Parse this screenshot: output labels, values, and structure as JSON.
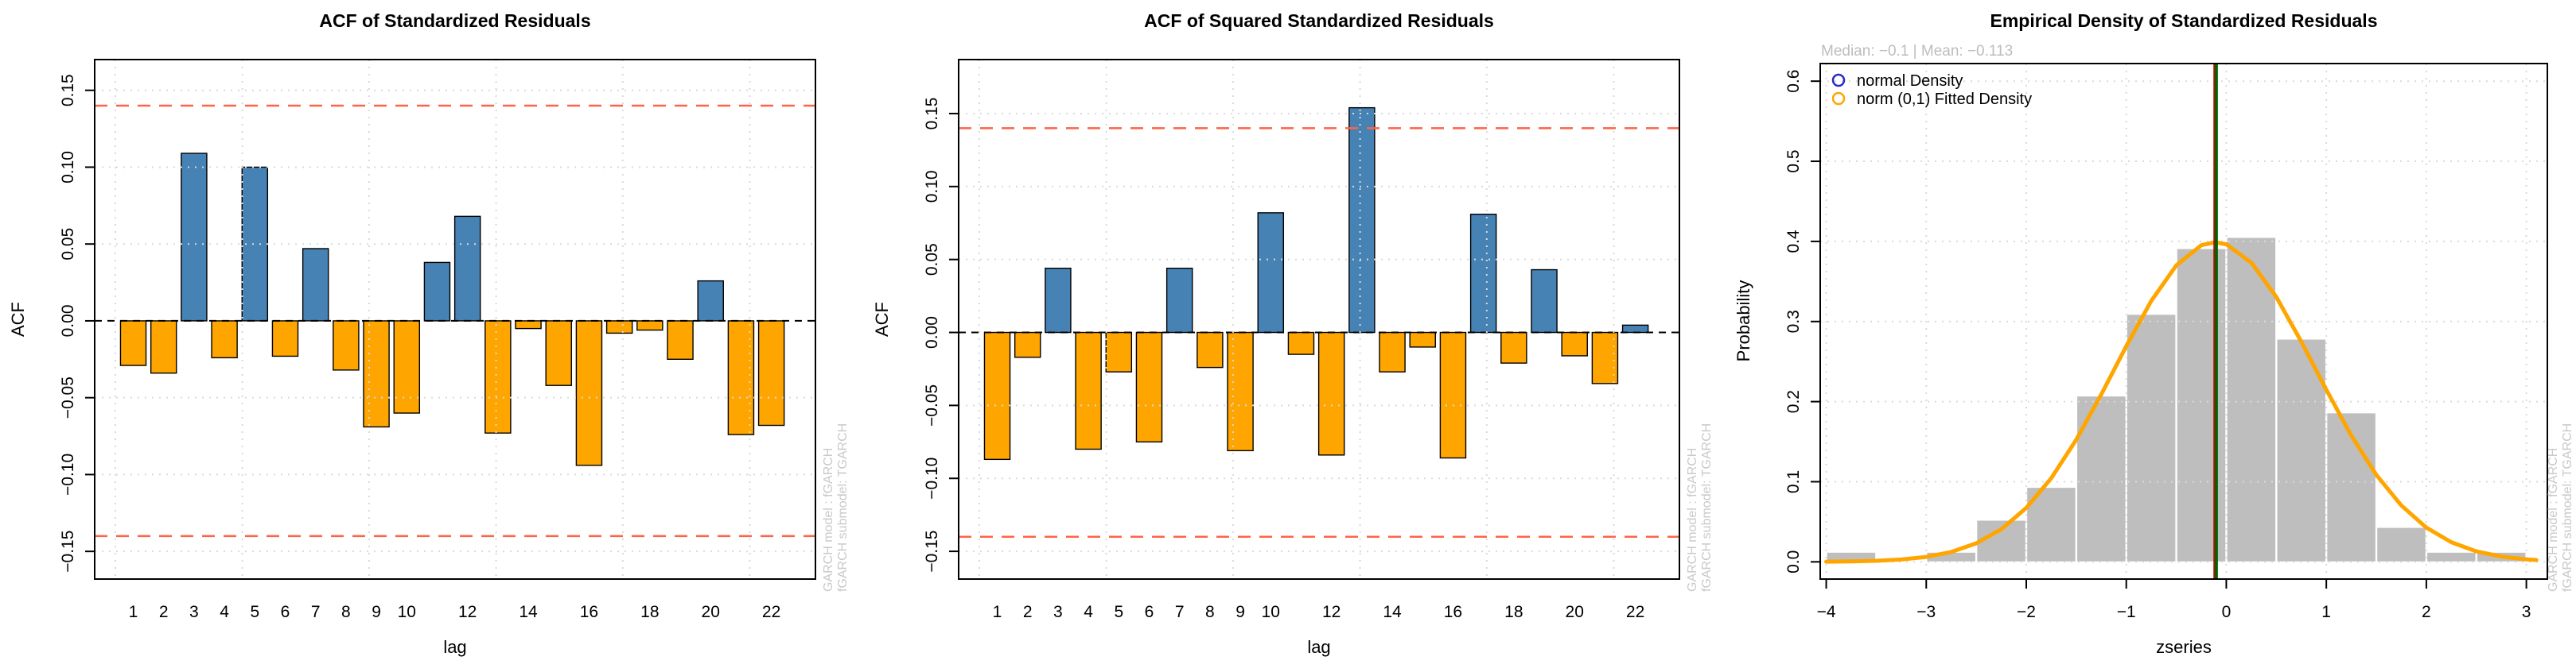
{
  "figure": {
    "background": "#ffffff",
    "side_note_line1": "GARCH model :  fGARCH",
    "side_note_line2": "fGARCH submodel:  TGARCH"
  },
  "chart_data": [
    {
      "type": "bar",
      "title": "ACF of Standardized Residuals",
      "xlabel": "lag",
      "ylabel": "ACF",
      "lags": [
        1,
        2,
        3,
        4,
        5,
        6,
        7,
        8,
        9,
        10,
        11,
        12,
        13,
        14,
        15,
        16,
        17,
        18,
        19,
        20,
        21,
        22
      ],
      "values": [
        -0.029,
        -0.034,
        0.109,
        -0.024,
        0.1,
        -0.023,
        0.047,
        -0.032,
        -0.069,
        -0.06,
        0.038,
        0.068,
        -0.073,
        -0.005,
        -0.042,
        -0.094,
        -0.008,
        -0.006,
        -0.025,
        0.026,
        -0.074,
        -0.068
      ],
      "conf_band": 0.14,
      "xlim": [
        -0.27,
        23.45
      ],
      "ylim": [
        -0.168,
        0.17
      ],
      "bar_width_lags": 0.84,
      "grid_on": true,
      "grid_x": [
        0.41,
        4.59,
        8.76,
        12.94,
        17.11,
        21.29
      ],
      "xticks": {
        "vals": [
          1,
          2,
          3,
          4,
          5,
          6,
          7,
          8,
          9,
          10,
          12,
          14,
          16,
          18,
          20,
          22
        ],
        "labels": [
          "1",
          "2",
          "3",
          "4",
          "5",
          "6",
          "7",
          "8",
          "9",
          "10",
          "12",
          "14",
          "16",
          "18",
          "20",
          "22"
        ]
      },
      "yticks": {
        "vals": [
          0.15,
          0.1,
          0.05,
          0,
          -0.05,
          -0.1,
          -0.15
        ],
        "labels": [
          "0.15",
          "0.10",
          "0.05",
          "0.00",
          "−0.05",
          "−0.10",
          "−0.15"
        ]
      },
      "colors": {
        "positive": "#4682B4",
        "negative": "#FFA500",
        "ci_line": "#FF6347",
        "zero_line": "#000000"
      }
    },
    {
      "type": "bar",
      "title": "ACF of Squared Standardized Residuals",
      "xlabel": "lag",
      "ylabel": "ACF",
      "lags": [
        1,
        2,
        3,
        4,
        5,
        6,
        7,
        8,
        9,
        10,
        11,
        12,
        13,
        14,
        15,
        16,
        17,
        18,
        19,
        20,
        21,
        22
      ],
      "values": [
        -0.087,
        -0.017,
        0.044,
        -0.08,
        -0.027,
        -0.075,
        0.044,
        -0.024,
        -0.081,
        0.082,
        -0.015,
        -0.084,
        0.154,
        -0.027,
        -0.01,
        -0.086,
        0.081,
        -0.021,
        0.043,
        -0.016,
        -0.035,
        0.005
      ],
      "conf_band": 0.14,
      "xlim": [
        -0.27,
        23.45
      ],
      "ylim": [
        -0.169,
        0.187
      ],
      "bar_width_lags": 0.84,
      "grid_on": true,
      "grid_x": [
        0.41,
        4.59,
        8.76,
        12.94,
        17.11,
        21.29
      ],
      "xticks": {
        "vals": [
          1,
          2,
          3,
          4,
          5,
          6,
          7,
          8,
          9,
          10,
          12,
          14,
          16,
          18,
          20,
          22
        ],
        "labels": [
          "1",
          "2",
          "3",
          "4",
          "5",
          "6",
          "7",
          "8",
          "9",
          "10",
          "12",
          "14",
          "16",
          "18",
          "20",
          "22"
        ]
      },
      "yticks": {
        "vals": [
          0.15,
          0.1,
          0.05,
          0,
          -0.05,
          -0.1,
          -0.15
        ],
        "labels": [
          "0.15",
          "0.10",
          "0.05",
          "0.00",
          "−0.05",
          "−0.10",
          "−0.15"
        ]
      },
      "colors": {
        "positive": "#4682B4",
        "negative": "#FFA500",
        "ci_line": "#FF6347",
        "zero_line": "#000000"
      }
    },
    {
      "type": "histogram+line",
      "title": "Empirical Density of Standardized Residuals",
      "xlabel": "zseries",
      "ylabel": "Probability",
      "annotation": "Median:  −0.1 | Mean:  −0.113",
      "median": -0.1,
      "mean": -0.113,
      "bins": {
        "start": -4,
        "width": 0.5,
        "density": [
          0.012,
          0,
          0.012,
          0.052,
          0.093,
          0.207,
          0.309,
          0.391,
          0.405,
          0.278,
          0.186,
          0.043,
          0.012,
          0.012
        ]
      },
      "curve": {
        "x": [
          -4,
          -3.75,
          -3.5,
          -3.25,
          -3,
          -2.75,
          -2.5,
          -2.25,
          -2,
          -1.75,
          -1.5,
          -1.25,
          -1,
          -0.75,
          -0.5,
          -0.25,
          -0.113,
          0,
          0.25,
          0.5,
          0.75,
          1,
          1.25,
          1.5,
          1.75,
          2,
          2.25,
          2.5,
          2.75,
          3,
          3.1
        ],
        "y": [
          0.0002,
          0.0005,
          0.0013,
          0.0029,
          0.0062,
          0.0123,
          0.0231,
          0.0407,
          0.0673,
          0.1044,
          0.1524,
          0.209,
          0.2692,
          0.3257,
          0.3701,
          0.3952,
          0.3989,
          0.3964,
          0.3735,
          0.3306,
          0.2749,
          0.2147,
          0.1576,
          0.1086,
          0.0704,
          0.0428,
          0.0245,
          0.0131,
          0.0066,
          0.0031,
          0.0023
        ]
      },
      "legend": [
        {
          "label": "normal Density",
          "color": "#2929CC"
        },
        {
          "label": "norm (0,1) Fitted Density",
          "color": "#FFA500"
        }
      ],
      "mean_line": {
        "x": -0.113,
        "color": "#CC0000"
      },
      "median_line": {
        "x": -0.1,
        "color": "#006400"
      },
      "xlim": [
        -4.06,
        3.21
      ],
      "ylim": [
        -0.0215,
        0.622
      ],
      "grid_on": true,
      "xticks": {
        "vals": [
          -4,
          -3,
          -2,
          -1,
          0,
          1,
          2,
          3
        ],
        "labels": [
          "−4",
          "−3",
          "−2",
          "−1",
          "0",
          "1",
          "2",
          "3"
        ]
      },
      "yticks": {
        "vals": [
          0,
          0.1,
          0.2,
          0.3,
          0.4,
          0.5,
          0.6
        ],
        "labels": [
          "0.0",
          "0.1",
          "0.2",
          "0.3",
          "0.4",
          "0.5",
          "0.6"
        ]
      },
      "hist_color": "#BEBEBE",
      "curve_color": "#FFA500"
    }
  ]
}
